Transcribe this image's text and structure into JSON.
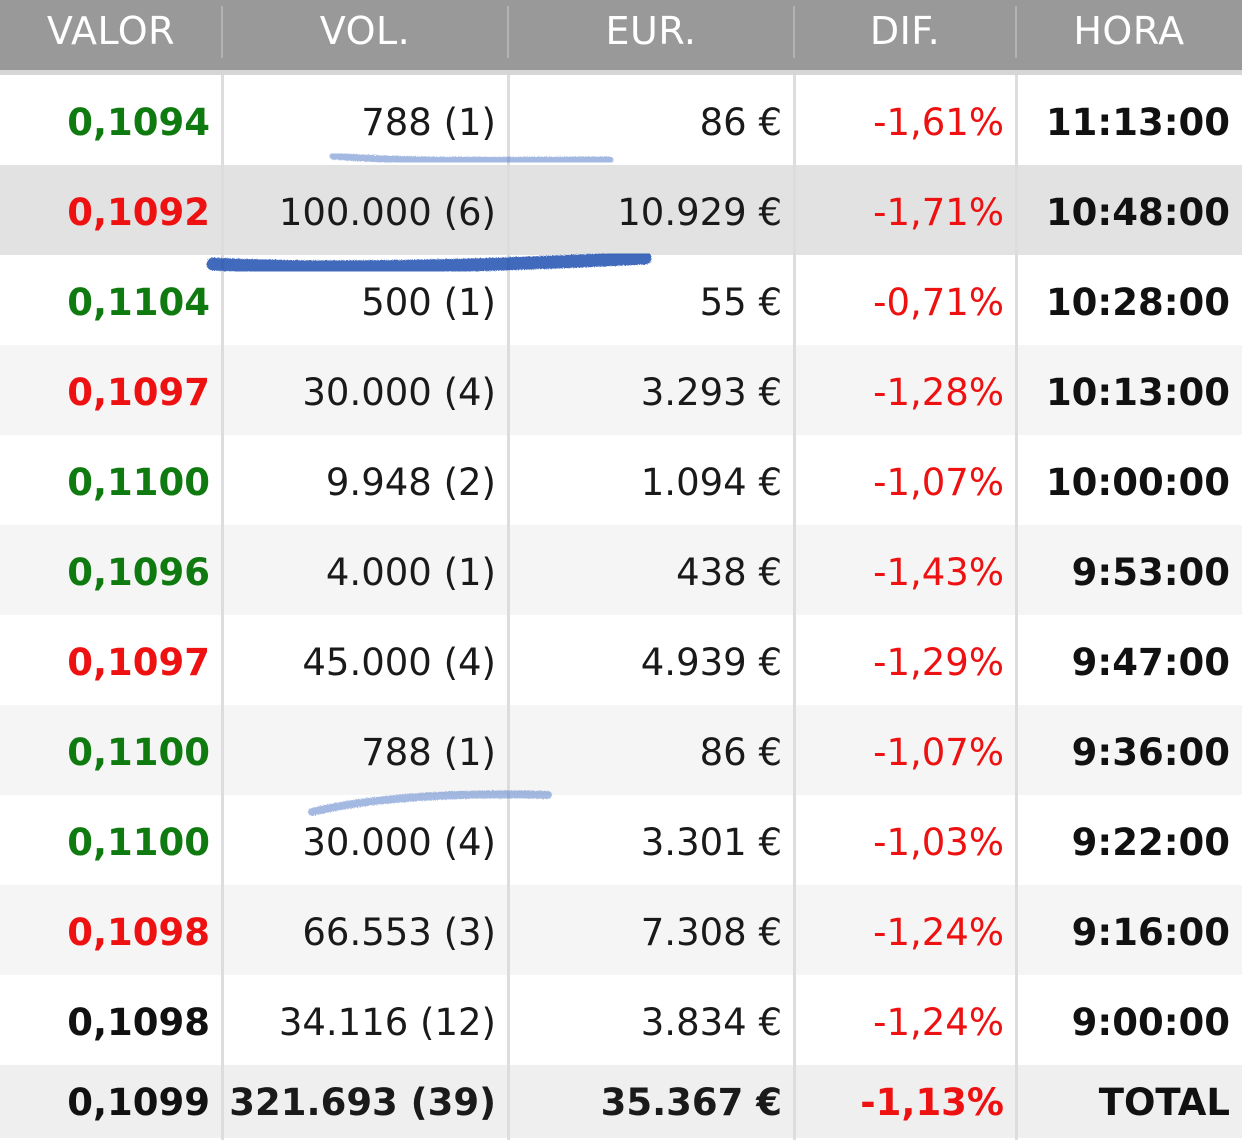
{
  "headers": {
    "valor": "VALOR",
    "vol": "VOL.",
    "eur": "EUR.",
    "dif": "DIF.",
    "hora": "HORA"
  },
  "rows": [
    {
      "valor": "0,1094",
      "valor_color": "green",
      "vol": "788 (1)",
      "eur": "86 €",
      "dif": "-1,61%",
      "hora": "11:13:00"
    },
    {
      "valor": "0,1092",
      "valor_color": "red",
      "vol": "100.000 (6)",
      "eur": "10.929 €",
      "dif": "-1,71%",
      "hora": "10:48:00"
    },
    {
      "valor": "0,1104",
      "valor_color": "green",
      "vol": "500 (1)",
      "eur": "55 €",
      "dif": "-0,71%",
      "hora": "10:28:00"
    },
    {
      "valor": "0,1097",
      "valor_color": "red",
      "vol": "30.000 (4)",
      "eur": "3.293 €",
      "dif": "-1,28%",
      "hora": "10:13:00"
    },
    {
      "valor": "0,1100",
      "valor_color": "green",
      "vol": "9.948 (2)",
      "eur": "1.094 €",
      "dif": "-1,07%",
      "hora": "10:00:00"
    },
    {
      "valor": "0,1096",
      "valor_color": "green",
      "vol": "4.000 (1)",
      "eur": "438 €",
      "dif": "-1,43%",
      "hora": "9:53:00"
    },
    {
      "valor": "0,1097",
      "valor_color": "red",
      "vol": "45.000 (4)",
      "eur": "4.939 €",
      "dif": "-1,29%",
      "hora": "9:47:00"
    },
    {
      "valor": "0,1100",
      "valor_color": "green",
      "vol": "788 (1)",
      "eur": "86 €",
      "dif": "-1,07%",
      "hora": "9:36:00"
    },
    {
      "valor": "0,1100",
      "valor_color": "green",
      "vol": "30.000 (4)",
      "eur": "3.301 €",
      "dif": "-1,03%",
      "hora": "9:22:00"
    },
    {
      "valor": "0,1098",
      "valor_color": "red",
      "vol": "66.553 (3)",
      "eur": "7.308 €",
      "dif": "-1,24%",
      "hora": "9:16:00"
    },
    {
      "valor": "0,1098",
      "valor_color": "black",
      "vol": "34.116 (12)",
      "eur": "3.834 €",
      "dif": "-1,24%",
      "hora": "9:00:00"
    }
  ],
  "total": {
    "valor": "0,1099",
    "vol": "321.693 (39)",
    "eur": "35.367 €",
    "dif": "-1,13%",
    "hora": "TOTAL"
  },
  "colors": {
    "header_bg": "#999999",
    "green": "#0f7a0f",
    "red": "#ee1111",
    "highlight_row": "#e2e2e2",
    "scribble": "#1f4fb0"
  }
}
